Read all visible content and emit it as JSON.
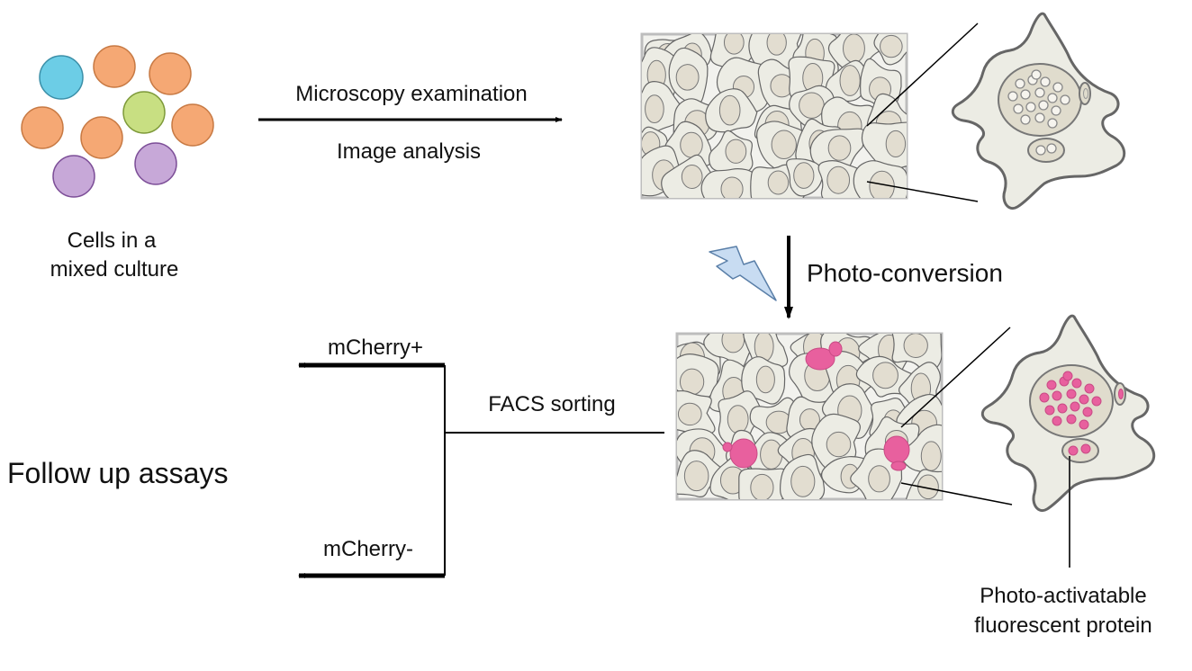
{
  "labels": {
    "mixed_culture_line1": "Cells in a",
    "mixed_culture_line2": "mixed culture",
    "microscopy": "Microscopy examination",
    "image_analysis": "Image analysis",
    "photo_conversion": "Photo-conversion",
    "facs_sorting": "FACS sorting",
    "mcherry_pos": "mCherry+",
    "mcherry_neg": "mCherry-",
    "follow_up": "Follow up assays",
    "protein_line1": "Photo-activatable",
    "protein_line2": "fluorescent protein"
  },
  "colors": {
    "cell_blue": "#6ccde6",
    "cell_orange": "#f5a874",
    "cell_green": "#c8df82",
    "cell_purple": "#c7a8d8",
    "tissue_bg": "#f0f0ec",
    "cell_fill": "#ededE5",
    "nucleus_fill": "#e2ddd0",
    "outline": "#777777",
    "pink": "#e8609e",
    "bolt_fill": "#c8dcf2",
    "bolt_stroke": "#5a7fa8"
  }
}
